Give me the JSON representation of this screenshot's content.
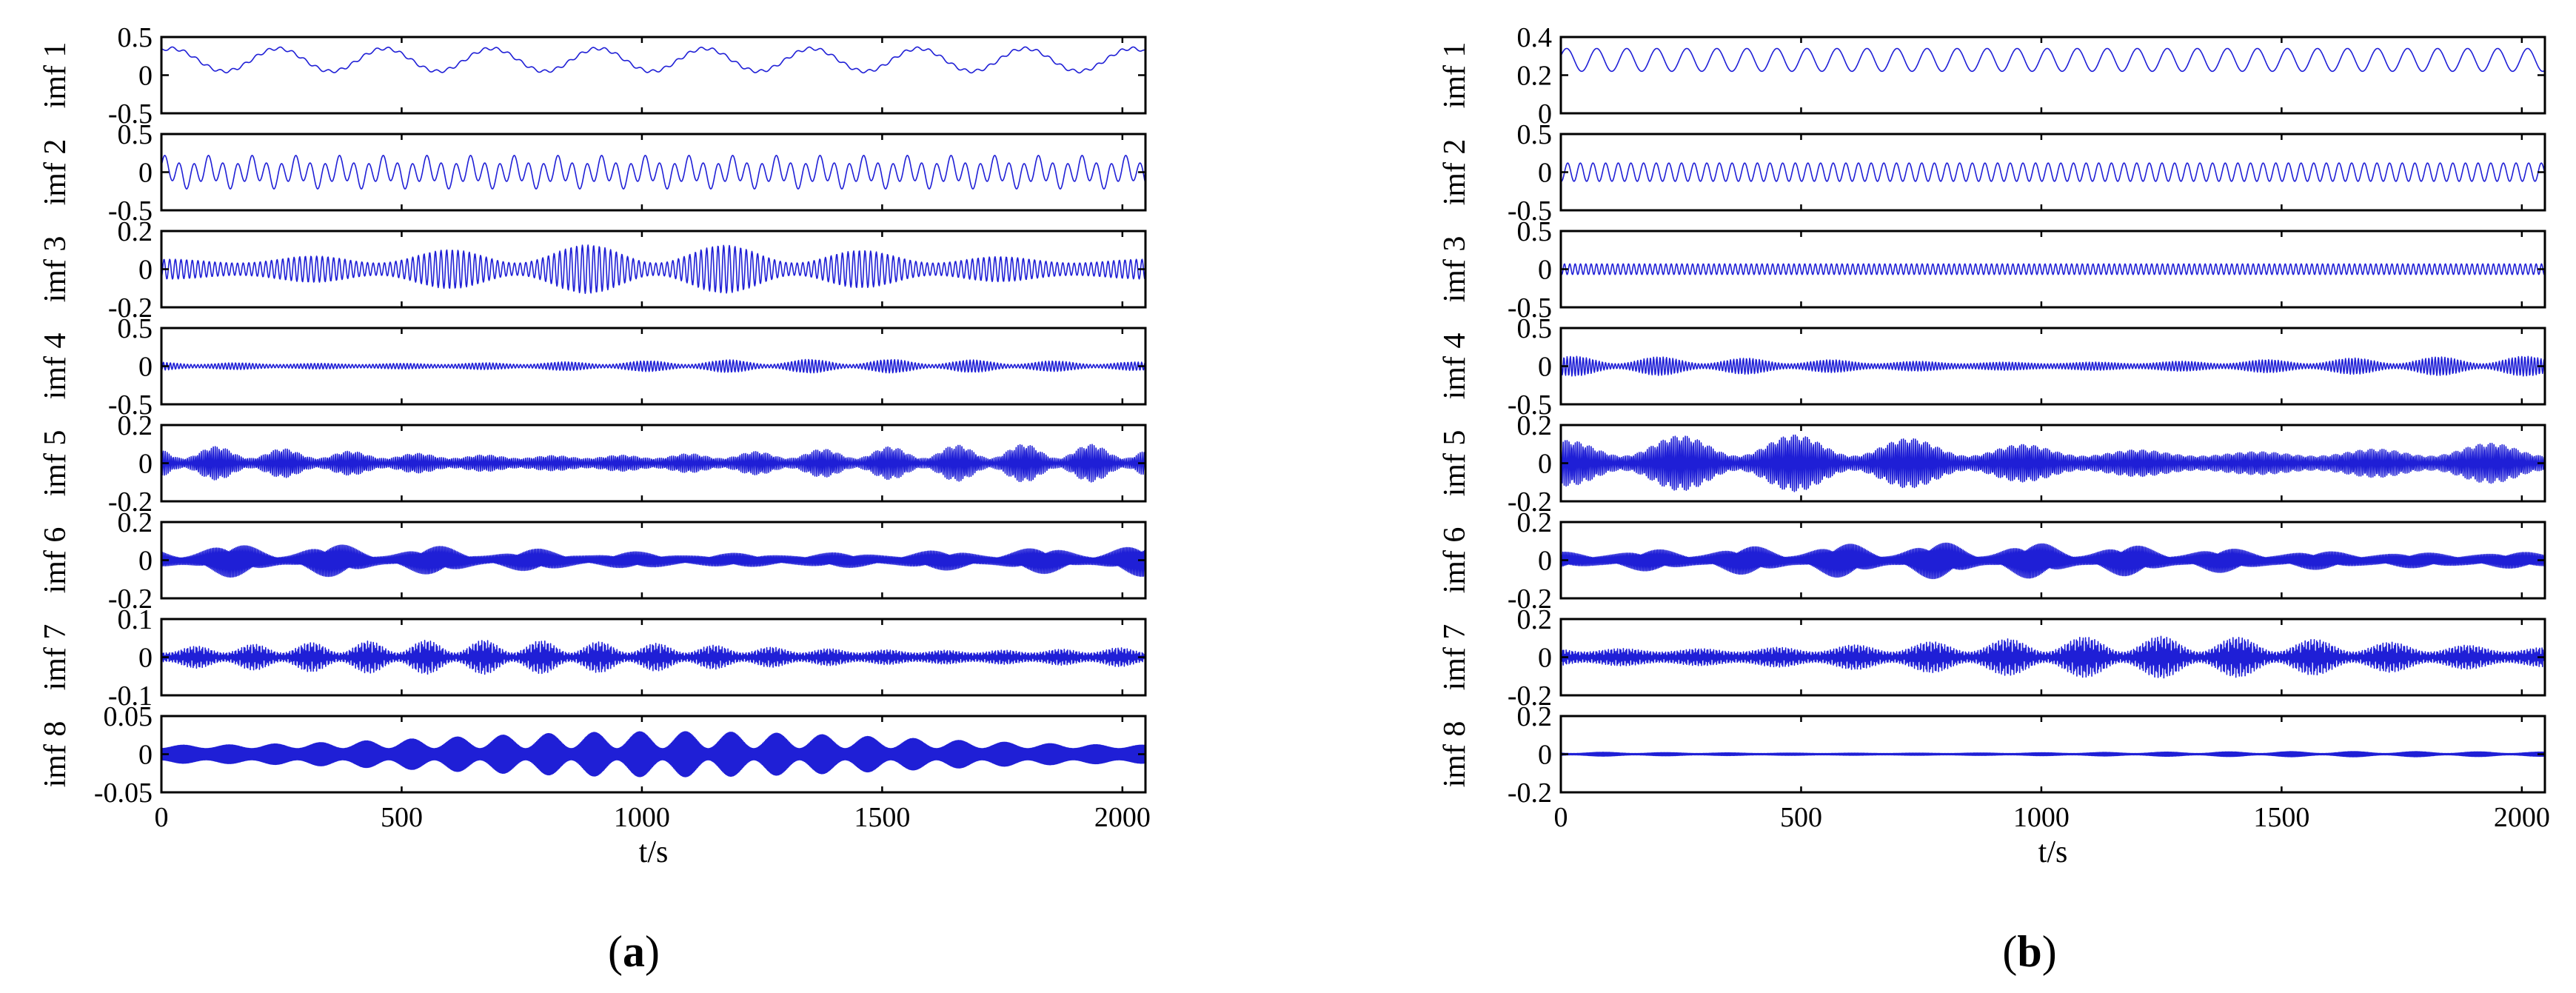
{
  "chart_data": [
    {
      "type": "line",
      "panel_label": "a",
      "xlabel": "t/s",
      "xlim": [
        0,
        2048
      ],
      "x_ticks": [
        0,
        500,
        1000,
        1500,
        2000
      ],
      "line_color": "#1f1fd6",
      "grid": false,
      "subplots": [
        {
          "ylabel": "imf 1",
          "ylim": [
            -0.5,
            0.5
          ],
          "y_ticks": [
            "0.5",
            "0",
            "-0.5"
          ],
          "y_tick_values": [
            0.5,
            0,
            -0.5
          ],
          "offset": 0.2,
          "pattern": [
            [
              0.15,
              0.0045,
              0
            ],
            [
              0.02,
              0.04,
              1.1
            ]
          ],
          "env_period": 0
        },
        {
          "ylabel": "imf 2",
          "ylim": [
            -0.5,
            0.5
          ],
          "y_ticks": [
            "0.5",
            "0",
            "-0.5"
          ],
          "y_tick_values": [
            0.5,
            0,
            -0.5
          ],
          "offset": 0,
          "pattern": [
            [
              0.15,
              0.033,
              0.4
            ],
            [
              0.07,
              0.011,
              1.3
            ]
          ],
          "env_period": 0
        },
        {
          "ylabel": "imf 3",
          "ylim": [
            -0.2,
            0.2
          ],
          "y_ticks": [
            "0.2",
            "0",
            "-0.2"
          ],
          "y_tick_values": [
            0.2,
            0,
            -0.2
          ],
          "offset": 0,
          "pattern": [
            [
              0.13,
              0.085,
              0.2
            ]
          ],
          "env_period": 290
        },
        {
          "ylabel": "imf 4",
          "ylim": [
            -0.5,
            0.5
          ],
          "y_ticks": [
            "0.5",
            "0",
            "-0.5"
          ],
          "y_tick_values": [
            0.5,
            0,
            -0.5
          ],
          "offset": 0,
          "pattern": [
            [
              0.09,
              0.14,
              0.6
            ]
          ],
          "env_period": 170
        },
        {
          "ylabel": "imf 5",
          "ylim": [
            -0.2,
            0.2
          ],
          "y_ticks": [
            "0.2",
            "0",
            "-0.2"
          ],
          "y_tick_values": [
            0.2,
            0,
            -0.2
          ],
          "offset": 0,
          "pattern": [
            [
              0.1,
              0.24,
              0.1
            ]
          ],
          "env_period": 140
        },
        {
          "ylabel": "imf 6",
          "ylim": [
            -0.2,
            0.2
          ],
          "y_ticks": [
            "0.2",
            "0",
            "-0.2"
          ],
          "y_tick_values": [
            0.2,
            0,
            -0.2
          ],
          "offset": 0,
          "pattern": [
            [
              0.09,
              0.33,
              0.5
            ]
          ],
          "env_period": 210
        },
        {
          "ylabel": "imf 7",
          "ylim": [
            -0.1,
            0.1
          ],
          "y_ticks": [
            "0.1",
            "0",
            "-0.1"
          ],
          "y_tick_values": [
            0.1,
            0,
            -0.1
          ],
          "offset": 0,
          "pattern": [
            [
              0.045,
              0.42,
              0.9
            ]
          ],
          "env_period": 120
        },
        {
          "ylabel": "imf 8",
          "ylim": [
            -0.05,
            0.05
          ],
          "y_ticks": [
            "0.05",
            "0",
            "-0.05"
          ],
          "y_tick_values": [
            0.05,
            0,
            -0.05
          ],
          "offset": 0,
          "pattern": [
            [
              0.03,
              0.5,
              0.3
            ]
          ],
          "env_period": 95
        }
      ]
    },
    {
      "type": "line",
      "panel_label": "b",
      "xlabel": "t/s",
      "xlim": [
        0,
        2048
      ],
      "x_ticks": [
        0,
        500,
        1000,
        1500,
        2000
      ],
      "line_color": "#1f1fd6",
      "grid": false,
      "subplots": [
        {
          "ylabel": "imf 1",
          "ylim": [
            0,
            0.4
          ],
          "y_ticks": [
            "0.4",
            "0.2",
            "0"
          ],
          "y_tick_values": [
            0.4,
            0.2,
            0
          ],
          "offset": 0.28,
          "pattern": [
            [
              0.06,
              0.016,
              1.2
            ]
          ],
          "env_period": 0
        },
        {
          "ylabel": "imf 2",
          "ylim": [
            -0.5,
            0.5
          ],
          "y_ticks": [
            "0.5",
            "0",
            "-0.5"
          ],
          "y_tick_values": [
            0.5,
            0,
            -0.5
          ],
          "offset": 0,
          "pattern": [
            [
              0.12,
              0.038,
              0.3
            ]
          ],
          "env_period": 0
        },
        {
          "ylabel": "imf 3",
          "ylim": [
            -0.5,
            0.5
          ],
          "y_ticks": [
            "0.5",
            "0",
            "-0.5"
          ],
          "y_tick_values": [
            0.5,
            0,
            -0.5
          ],
          "offset": 0,
          "pattern": [
            [
              0.07,
              0.09,
              0.7
            ]
          ],
          "env_period": 0
        },
        {
          "ylabel": "imf 4",
          "ylim": [
            -0.5,
            0.5
          ],
          "y_ticks": [
            "0.5",
            "0",
            "-0.5"
          ],
          "y_tick_values": [
            0.5,
            0,
            -0.5
          ],
          "offset": 0,
          "pattern": [
            [
              0.13,
              0.15,
              0.2
            ]
          ],
          "env_period": 180
        },
        {
          "ylabel": "imf 5",
          "ylim": [
            -0.2,
            0.2
          ],
          "y_ticks": [
            "0.2",
            "0",
            "-0.2"
          ],
          "y_tick_values": [
            0.2,
            0,
            -0.2
          ],
          "offset": 0,
          "pattern": [
            [
              0.15,
              0.24,
              0.4
            ]
          ],
          "env_period": 240
        },
        {
          "ylabel": "imf 6",
          "ylim": [
            -0.2,
            0.2
          ],
          "y_ticks": [
            "0.2",
            "0",
            "-0.2"
          ],
          "y_tick_values": [
            0.2,
            0,
            -0.2
          ],
          "offset": 0,
          "pattern": [
            [
              0.1,
              0.33,
              0.8
            ]
          ],
          "env_period": 200
        },
        {
          "ylabel": "imf 7",
          "ylim": [
            -0.2,
            0.2
          ],
          "y_ticks": [
            "0.2",
            "0",
            "-0.2"
          ],
          "y_tick_values": [
            0.2,
            0,
            -0.2
          ],
          "offset": 0,
          "pattern": [
            [
              0.11,
              0.42,
              0.1
            ]
          ],
          "env_period": 160
        },
        {
          "ylabel": "imf 8",
          "ylim": [
            -0.2,
            0.2
          ],
          "y_ticks": [
            "0.2",
            "0",
            "-0.2"
          ],
          "y_tick_values": [
            0.2,
            0,
            -0.2
          ],
          "offset": 0,
          "pattern": [
            [
              0.07,
              0.5,
              0.6
            ]
          ],
          "env_period": 130
        }
      ]
    }
  ]
}
